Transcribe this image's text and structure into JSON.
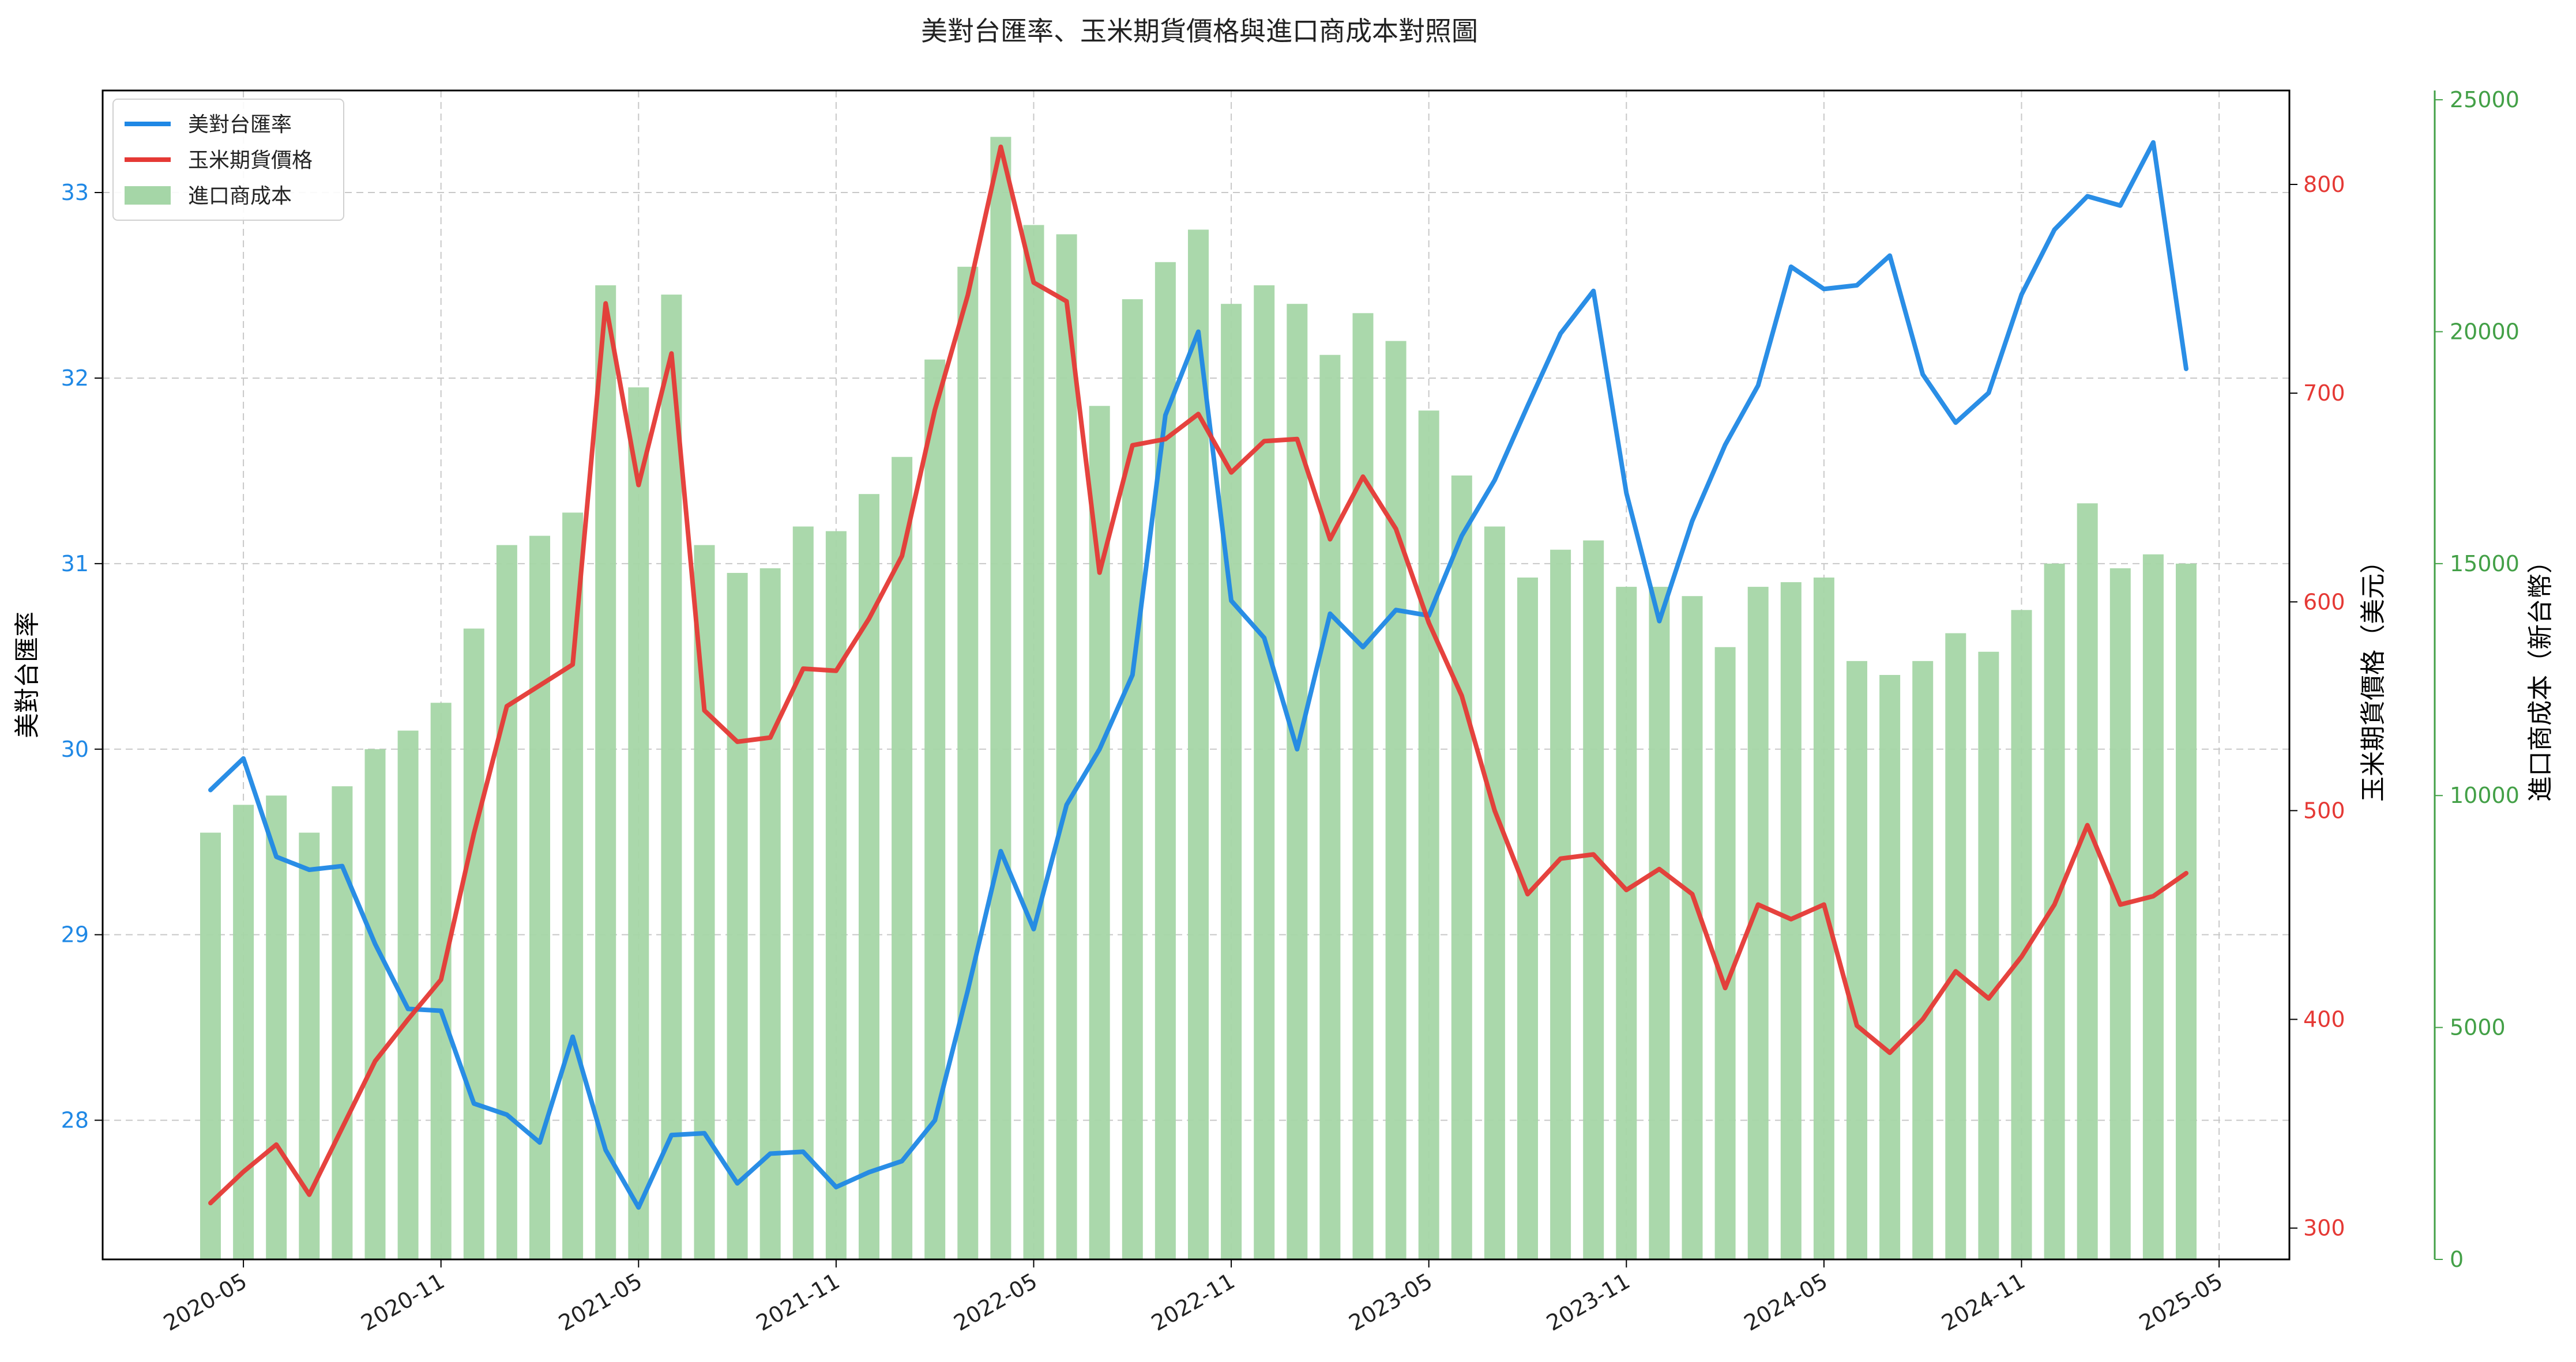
{
  "chart_data": {
    "type": "bar+line",
    "title": "美對台匯率、玉米期貨價格與進口商成本對照圖",
    "x": [
      "2020-04",
      "2020-05",
      "2020-06",
      "2020-07",
      "2020-08",
      "2020-09",
      "2020-10",
      "2020-11",
      "2020-12",
      "2021-01",
      "2021-02",
      "2021-03",
      "2021-04",
      "2021-05",
      "2021-06",
      "2021-07",
      "2021-08",
      "2021-09",
      "2021-10",
      "2021-11",
      "2021-12",
      "2022-01",
      "2022-02",
      "2022-03",
      "2022-04",
      "2022-05",
      "2022-06",
      "2022-07",
      "2022-08",
      "2022-09",
      "2022-10",
      "2022-11",
      "2022-12",
      "2023-01",
      "2023-02",
      "2023-03",
      "2023-04",
      "2023-05",
      "2023-06",
      "2023-07",
      "2023-08",
      "2023-09",
      "2023-10",
      "2023-11",
      "2023-12",
      "2024-01",
      "2024-02",
      "2024-03",
      "2024-04",
      "2024-05",
      "2024-06",
      "2024-07",
      "2024-08",
      "2024-09",
      "2024-10",
      "2024-11",
      "2024-12",
      "2025-01",
      "2025-02",
      "2025-03",
      "2025-04"
    ],
    "x_ticks": [
      "2020-05",
      "2020-11",
      "2021-05",
      "2021-11",
      "2022-05",
      "2022-11",
      "2023-05",
      "2023-11",
      "2024-05",
      "2024-11",
      "2025-05"
    ],
    "series": [
      {
        "name": "美對台匯率",
        "type": "line",
        "axis": "left",
        "color": "#1f88e5",
        "values": [
          29.78,
          29.95,
          29.42,
          29.35,
          29.37,
          28.95,
          28.6,
          28.59,
          28.09,
          28.03,
          27.88,
          28.45,
          27.84,
          27.53,
          27.92,
          27.93,
          27.66,
          27.82,
          27.83,
          27.64,
          27.72,
          27.78,
          28.0,
          28.7,
          29.45,
          29.03,
          29.7,
          30.0,
          30.4,
          31.8,
          32.25,
          30.8,
          30.6,
          30.0,
          30.73,
          30.55,
          30.75,
          30.72,
          31.15,
          31.45,
          31.85,
          32.24,
          32.47,
          31.38,
          30.69,
          31.23,
          31.64,
          31.96,
          32.6,
          32.48,
          32.5,
          32.66,
          32.02,
          31.76,
          31.92,
          32.45,
          32.8,
          32.98,
          32.93,
          33.27,
          32.05
        ]
      },
      {
        "name": "玉米期貨價格",
        "type": "line",
        "axis": "right",
        "color": "#e53935",
        "values": [
          312,
          327,
          340,
          316,
          348,
          380,
          400,
          419,
          489,
          550,
          560,
          570,
          743,
          656,
          719,
          548,
          533,
          535,
          568,
          567,
          592,
          622,
          692,
          747,
          818,
          753,
          744,
          614,
          675,
          678,
          690,
          662,
          677,
          678,
          630,
          660,
          635,
          590,
          555,
          500,
          460,
          477,
          479,
          462,
          472,
          460,
          415,
          455,
          448,
          455,
          397,
          384,
          400,
          423,
          410,
          430,
          455,
          493,
          455,
          459,
          470
        ]
      },
      {
        "name": "進口商成本",
        "type": "bar",
        "axis": "right2",
        "color": "#a5d6a7",
        "values": [
          9200,
          9800,
          10000,
          9200,
          10200,
          11000,
          11400,
          12000,
          13600,
          15400,
          15600,
          16100,
          21000,
          18800,
          20800,
          15400,
          14800,
          14900,
          15800,
          15700,
          16500,
          17300,
          19400,
          21400,
          24200,
          22300,
          22100,
          18400,
          20700,
          21500,
          22200,
          20600,
          21000,
          20600,
          19500,
          20400,
          19800,
          18300,
          16900,
          15800,
          14700,
          15300,
          15500,
          14500,
          14500,
          14300,
          13200,
          14500,
          14600,
          14700,
          12900,
          12600,
          12900,
          13500,
          13100,
          14000,
          15000,
          16300,
          14900,
          15200,
          15000
        ]
      }
    ],
    "y_left": {
      "label": "美對台匯率",
      "range": [
        27.25,
        33.55
      ],
      "ticks": [
        28,
        29,
        30,
        31,
        32,
        33
      ],
      "color": "#1f88e5"
    },
    "y_right": {
      "label": "玉米期貨價格（美元）",
      "range": [
        285,
        845
      ],
      "ticks": [
        300,
        400,
        500,
        600,
        700,
        800
      ],
      "color": "#e53935"
    },
    "y_right2": {
      "label": "進口商成本（新台幣）",
      "range": [
        0,
        25200
      ],
      "ticks": [
        0,
        5000,
        10000,
        15000,
        20000,
        25000
      ],
      "color": "#43a047"
    },
    "grid": true,
    "legend": {
      "position": "top-left",
      "entries": [
        "美對台匯率",
        "玉米期貨價格",
        "進口商成本"
      ]
    }
  }
}
